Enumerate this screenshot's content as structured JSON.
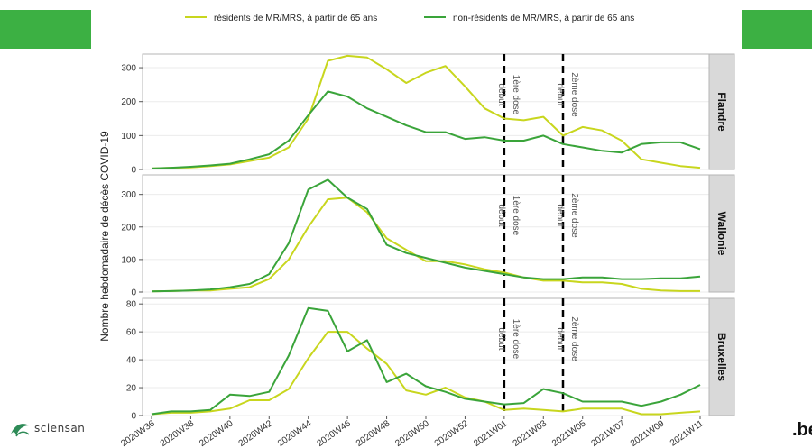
{
  "brand": {
    "name": "sciensan",
    "site": ".be"
  },
  "colors": {
    "residents": "#c8d61e",
    "non_residents": "#3aa43a",
    "corner": "#3cb043",
    "strip": "#d9d9d9"
  },
  "chart_data": {
    "type": "line",
    "ylabel": "Nombre hebdomadaire de décès COVID-19",
    "x": [
      "2020W36",
      "2020W37",
      "2020W38",
      "2020W39",
      "2020W40",
      "2020W41",
      "2020W42",
      "2020W43",
      "2020W44",
      "2020W45",
      "2020W46",
      "2020W47",
      "2020W48",
      "2020W49",
      "2020W50",
      "2020W51",
      "2020W52",
      "2020W53",
      "2021W01",
      "2021W02",
      "2021W03",
      "2021W04",
      "2021W05",
      "2021W06",
      "2021W07",
      "2021W08",
      "2021W09",
      "2021W10",
      "2021W11"
    ],
    "x_tick_labels": [
      "2020W36",
      "2020W38",
      "2020W40",
      "2020W42",
      "2020W44",
      "2020W46",
      "2020W48",
      "2020W50",
      "2020W52",
      "2021W01",
      "2021W03",
      "2021W05",
      "2021W07",
      "2021W09",
      "2021W11"
    ],
    "legend_position": "top",
    "grid": true,
    "vlines": [
      {
        "x": "2021W01",
        "label_top": "début",
        "label_bottom": "1ère dose"
      },
      {
        "x": "2021W04",
        "label_top": "début",
        "label_bottom": "2ème dose"
      }
    ],
    "panels": [
      {
        "region": "Flandre",
        "ylim": [
          0,
          340
        ],
        "yticks": [
          0,
          100,
          200,
          300
        ],
        "series": [
          {
            "name": "résidents de MR/MRS, à partir de 65 ans",
            "values": [
              3,
              5,
              6,
              10,
              15,
              25,
              35,
              65,
              150,
              320,
              335,
              330,
              295,
              255,
              285,
              305,
              245,
              180,
              150,
              145,
              155,
              100,
              125,
              115,
              85,
              30,
              20,
              10,
              5
            ]
          },
          {
            "name": "non-résidents de MR/MRS, à partir de 65 ans",
            "values": [
              3,
              5,
              8,
              12,
              17,
              30,
              45,
              85,
              160,
              230,
              215,
              180,
              155,
              130,
              110,
              110,
              90,
              95,
              85,
              85,
              100,
              75,
              65,
              55,
              50,
              75,
              80,
              80,
              60
            ]
          }
        ]
      },
      {
        "region": "Wallonie",
        "ylim": [
          0,
          360
        ],
        "yticks": [
          0,
          100,
          200,
          300
        ],
        "series": [
          {
            "name": "résidents de MR/MRS, à partir de 65 ans",
            "values": [
              2,
              3,
              5,
              5,
              10,
              15,
              40,
              100,
              200,
              285,
              290,
              245,
              165,
              130,
              95,
              95,
              85,
              70,
              60,
              45,
              35,
              35,
              30,
              30,
              25,
              10,
              5,
              3,
              3
            ]
          },
          {
            "name": "non-résidents de MR/MRS, à partir de 65 ans",
            "values": [
              2,
              3,
              5,
              8,
              15,
              25,
              55,
              150,
              315,
              345,
              290,
              255,
              145,
              120,
              105,
              90,
              75,
              65,
              55,
              45,
              40,
              40,
              45,
              45,
              40,
              40,
              42,
              42,
              48
            ]
          }
        ]
      },
      {
        "region": "Bruxelles",
        "ylim": [
          0,
          84
        ],
        "yticks": [
          0,
          20,
          40,
          60,
          80
        ],
        "series": [
          {
            "name": "résidents de MR/MRS, à partir de 65 ans",
            "values": [
              1,
              2,
              2,
              3,
              5,
              11,
              11,
              19,
              41,
              60,
              60,
              48,
              37,
              18,
              15,
              20,
              13,
              10,
              4,
              5,
              4,
              3,
              5,
              5,
              5,
              1,
              1,
              2,
              3
            ]
          },
          {
            "name": "non-résidents de MR/MRS, à partir de 65 ans",
            "values": [
              1,
              3,
              3,
              4,
              15,
              14,
              17,
              43,
              77,
              75,
              46,
              54,
              24,
              30,
              21,
              17,
              12,
              10,
              8,
              9,
              19,
              16,
              10,
              10,
              10,
              7,
              10,
              15,
              22
            ]
          }
        ]
      }
    ]
  }
}
